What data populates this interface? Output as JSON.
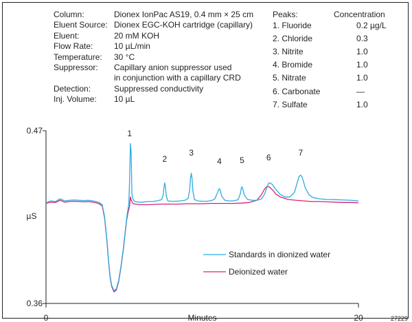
{
  "conditions": [
    {
      "label": "Column:",
      "value": "Dionex IonPac AS19, 0.4 mm × 25 cm"
    },
    {
      "label": "Eluent Source:",
      "value": "Dionex EGC-KOH cartridge (capillary)"
    },
    {
      "label": "Eluent:",
      "value": "20 mM KOH"
    },
    {
      "label": "Flow Rate:",
      "value": "10 µL/min"
    },
    {
      "label": "Temperature:",
      "value": "30 °C"
    },
    {
      "label": "Suppressor:",
      "value": "Capillary anion suppressor used"
    },
    {
      "label": "",
      "value": "in conjunction with a capillary CRD"
    },
    {
      "label": "Detection:",
      "value": "Suppressed conductivity"
    },
    {
      "label": "Inj. Volume:",
      "value": "10 µL"
    }
  ],
  "peaks_header": {
    "label": "Peaks:",
    "concentration": "Concentration"
  },
  "peaks": [
    {
      "name": "1. Fluoride",
      "conc": "0.2 µg/L"
    },
    {
      "name": "2. Chloride",
      "conc": "0.3"
    },
    {
      "name": "3. Nitrite",
      "conc": "1.0"
    },
    {
      "name": "4. Bromide",
      "conc": "1.0"
    },
    {
      "name": "5. Nitrate",
      "conc": "1.0"
    },
    {
      "name": "6. Carbonate",
      "conc": "—"
    },
    {
      "name": "7. Sulfate",
      "conc": "1.0"
    }
  ],
  "figure_id": "27229",
  "chart_data": {
    "type": "line",
    "xlabel": "Minutes",
    "ylabel": "µS",
    "xlim": [
      0,
      20
    ],
    "ylim": [
      0.36,
      0.47
    ],
    "x_ticks": [
      "0",
      "20"
    ],
    "y_ticks": [
      "0.36",
      "0.47"
    ],
    "legend_position": "bottom-center",
    "peak_labels": [
      {
        "label": "1",
        "x": 5.35,
        "y": 0.4666
      },
      {
        "label": "2",
        "x": 7.6,
        "y": 0.4502
      },
      {
        "label": "3",
        "x": 9.3,
        "y": 0.4543
      },
      {
        "label": "4",
        "x": 11.1,
        "y": 0.4488
      },
      {
        "label": "5",
        "x": 12.55,
        "y": 0.4494
      },
      {
        "label": "6",
        "x": 14.25,
        "y": 0.4512
      },
      {
        "label": "7",
        "x": 16.3,
        "y": 0.4543
      }
    ],
    "series": [
      {
        "name": "Standards in dionized water",
        "color": "#29abe2",
        "x": [
          0,
          0.3,
          0.6,
          0.9,
          1.2,
          1.5,
          1.8,
          2.1,
          2.4,
          2.7,
          3.0,
          3.2,
          3.4,
          3.6,
          3.75,
          3.9,
          4.0,
          4.1,
          4.2,
          4.35,
          4.5,
          4.65,
          4.8,
          4.95,
          5.05,
          5.15,
          5.2,
          5.25,
          5.3,
          5.35,
          5.4,
          5.45,
          5.5,
          5.55,
          5.6,
          5.7,
          5.9,
          6.2,
          6.5,
          6.8,
          7.1,
          7.4,
          7.5,
          7.55,
          7.6,
          7.65,
          7.7,
          7.8,
          8.0,
          8.3,
          8.6,
          8.9,
          9.1,
          9.2,
          9.25,
          9.3,
          9.35,
          9.4,
          9.5,
          9.7,
          10.0,
          10.3,
          10.6,
          10.8,
          10.95,
          11.05,
          11.1,
          11.15,
          11.25,
          11.45,
          11.7,
          12.0,
          12.3,
          12.45,
          12.5,
          12.55,
          12.6,
          12.7,
          12.9,
          13.2,
          13.5,
          13.8,
          14.0,
          14.15,
          14.25,
          14.35,
          14.5,
          14.7,
          15.0,
          15.3,
          15.6,
          15.9,
          16.1,
          16.2,
          16.3,
          16.4,
          16.6,
          16.85,
          17.1,
          17.5,
          18.0,
          18.5,
          19.0,
          19.5,
          20.0
        ],
        "y": [
          0.4241,
          0.4253,
          0.4249,
          0.4266,
          0.4253,
          0.4257,
          0.4259,
          0.4257,
          0.4255,
          0.4257,
          0.4253,
          0.4249,
          0.4243,
          0.4228,
          0.4152,
          0.4005,
          0.3875,
          0.3776,
          0.3715,
          0.3681,
          0.3693,
          0.3747,
          0.3838,
          0.3949,
          0.4041,
          0.413,
          0.4171,
          0.42,
          0.4237,
          0.438,
          0.4618,
          0.456,
          0.4296,
          0.4271,
          0.4257,
          0.4249,
          0.4245,
          0.4245,
          0.4249,
          0.4249,
          0.4253,
          0.4261,
          0.429,
          0.4339,
          0.4368,
          0.4339,
          0.4282,
          0.4253,
          0.4251,
          0.4251,
          0.4253,
          0.4257,
          0.4269,
          0.4325,
          0.4396,
          0.4429,
          0.4396,
          0.4315,
          0.4262,
          0.4253,
          0.4251,
          0.4251,
          0.4255,
          0.4265,
          0.4298,
          0.4325,
          0.4331,
          0.432,
          0.4282,
          0.4257,
          0.4253,
          0.4253,
          0.4261,
          0.4302,
          0.4335,
          0.4343,
          0.4329,
          0.429,
          0.4262,
          0.4257,
          0.4257,
          0.4266,
          0.4298,
          0.4343,
          0.4366,
          0.4368,
          0.4356,
          0.4327,
          0.4294,
          0.4278,
          0.4278,
          0.4306,
          0.4376,
          0.4409,
          0.4417,
          0.4404,
          0.4335,
          0.429,
          0.4274,
          0.4266,
          0.4262,
          0.4261,
          0.4259,
          0.4257,
          0.4253
        ]
      },
      {
        "name": "Deionized water",
        "color": "#d6246e",
        "x": [
          0,
          0.3,
          0.6,
          0.9,
          1.2,
          1.5,
          1.8,
          2.1,
          2.4,
          2.7,
          3.0,
          3.2,
          3.4,
          3.6,
          3.75,
          3.9,
          4.0,
          4.1,
          4.2,
          4.35,
          4.5,
          4.65,
          4.8,
          4.95,
          5.05,
          5.15,
          5.25,
          5.35,
          5.4,
          5.45,
          5.55,
          5.7,
          6.0,
          6.5,
          7.0,
          7.5,
          8.0,
          8.5,
          9.0,
          9.5,
          10.0,
          10.5,
          11.0,
          11.5,
          12.0,
          12.5,
          13.0,
          13.5,
          13.8,
          14.0,
          14.15,
          14.3,
          14.5,
          14.7,
          15.0,
          15.5,
          16.0,
          16.5,
          17.0,
          17.5,
          18.0,
          18.5,
          19.0,
          19.5,
          20.0
        ],
        "y": [
          0.4237,
          0.4245,
          0.4243,
          0.4257,
          0.4245,
          0.4249,
          0.4251,
          0.4249,
          0.4247,
          0.4249,
          0.4245,
          0.4241,
          0.4235,
          0.422,
          0.4144,
          0.3998,
          0.3869,
          0.3768,
          0.3708,
          0.3673,
          0.3685,
          0.3739,
          0.383,
          0.3941,
          0.4033,
          0.4122,
          0.418,
          0.4218,
          0.4278,
          0.426,
          0.4237,
          0.4233,
          0.4229,
          0.4229,
          0.4231,
          0.4233,
          0.4233,
          0.4233,
          0.4235,
          0.4235,
          0.4235,
          0.4237,
          0.4237,
          0.4237,
          0.4237,
          0.4239,
          0.4243,
          0.4257,
          0.4294,
          0.4331,
          0.4345,
          0.4341,
          0.4323,
          0.4298,
          0.4278,
          0.4262,
          0.4257,
          0.4253,
          0.4249,
          0.4249,
          0.4247,
          0.4245,
          0.4243,
          0.4243,
          0.4241
        ]
      }
    ]
  }
}
